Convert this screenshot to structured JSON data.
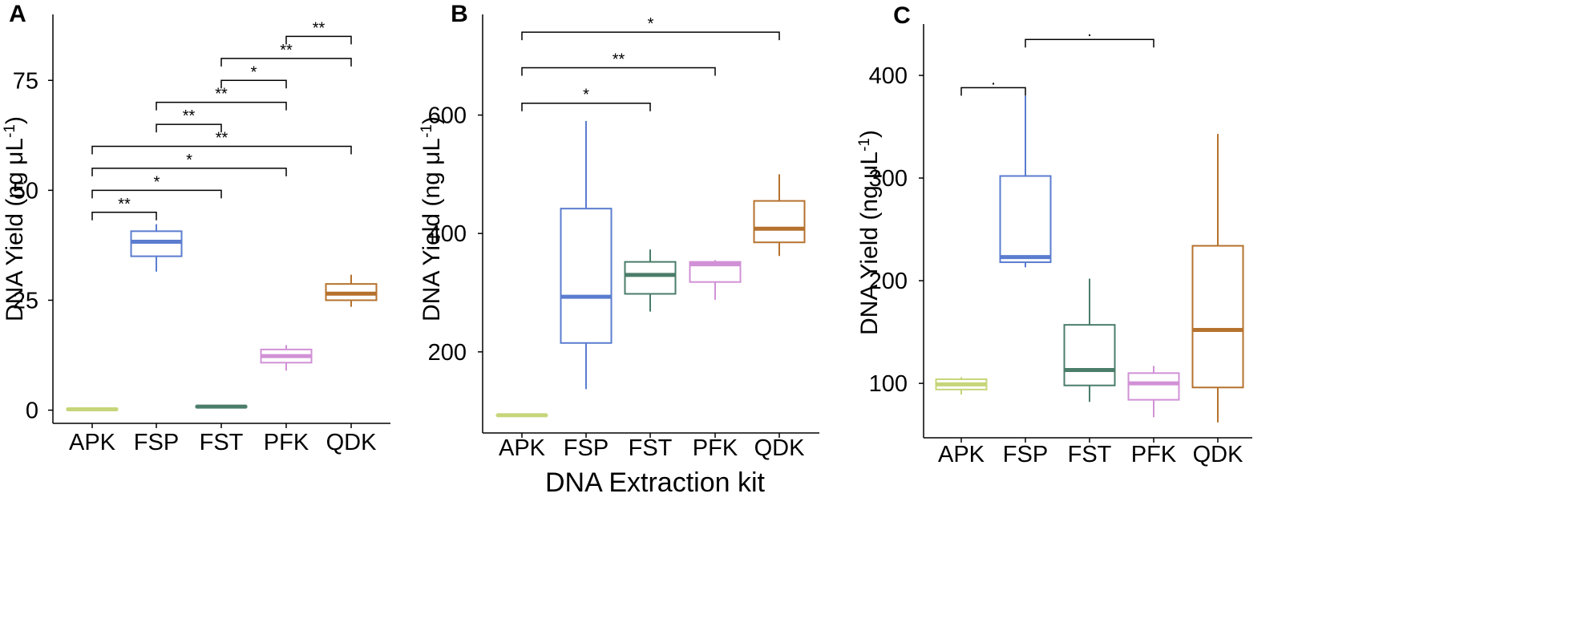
{
  "figure": {
    "xlabel": "DNA Extraction kit"
  },
  "kit_colors": {
    "APK": "#c7d57a",
    "FSP": "#5b7ccf",
    "FST": "#4a7d6a",
    "PFK": "#d191d6",
    "QDK": "#b5722e"
  },
  "chart_data": [
    {
      "panel": "A",
      "type": "box",
      "ylabel_main": "DNA Yield (ng μL",
      "ylabel_sup": "-1",
      "ylabel_close": ")",
      "categories": [
        "APK",
        "FSP",
        "FST",
        "PFK",
        "QDK"
      ],
      "ylim": [
        -3,
        90
      ],
      "yticks": [
        0,
        25,
        50,
        75
      ],
      "yticklabels": [
        "0",
        "25",
        "50",
        "75"
      ],
      "boxes": [
        {
          "name": "APK",
          "min": 0.1,
          "q1": 0.1,
          "median": 0.2,
          "q3": 0.3,
          "max": 0.3
        },
        {
          "name": "FSP",
          "min": 31.5,
          "q1": 35.0,
          "median": 38.3,
          "q3": 40.7,
          "max": 42.3
        },
        {
          "name": "FST",
          "min": 0.6,
          "q1": 0.7,
          "median": 0.8,
          "q3": 0.9,
          "max": 1.0
        },
        {
          "name": "PFK",
          "min": 9.0,
          "q1": 10.8,
          "median": 12.3,
          "q3": 13.8,
          "max": 14.8
        },
        {
          "name": "QDK",
          "min": 23.5,
          "q1": 25.0,
          "median": 26.5,
          "q3": 28.7,
          "max": 30.8
        }
      ],
      "significance": [
        {
          "from": "APK",
          "to": "FSP",
          "y": 45,
          "label": "**"
        },
        {
          "from": "APK",
          "to": "FST",
          "y": 50,
          "label": "*"
        },
        {
          "from": "APK",
          "to": "PFK",
          "y": 55,
          "label": "*"
        },
        {
          "from": "APK",
          "to": "QDK",
          "y": 60,
          "label": "**"
        },
        {
          "from": "FSP",
          "to": "FST",
          "y": 65,
          "label": "**"
        },
        {
          "from": "FSP",
          "to": "PFK",
          "y": 70,
          "label": "**"
        },
        {
          "from": "FST",
          "to": "PFK",
          "y": 75,
          "label": "*"
        },
        {
          "from": "FST",
          "to": "QDK",
          "y": 80,
          "label": "**"
        },
        {
          "from": "PFK",
          "to": "QDK",
          "y": 85,
          "label": "**"
        }
      ]
    },
    {
      "panel": "B",
      "type": "box",
      "ylabel_main": "DNA Yield (ng μL",
      "ylabel_sup": "-1",
      "ylabel_close": ")",
      "categories": [
        "APK",
        "FSP",
        "FST",
        "PFK",
        "QDK"
      ],
      "ylim": [
        63,
        770
      ],
      "yticks": [
        200,
        400,
        600
      ],
      "yticklabels": [
        "200",
        "400",
        "600"
      ],
      "boxes": [
        {
          "name": "APK",
          "min": 93,
          "q1": 93,
          "median": 93,
          "q3": 93,
          "max": 93
        },
        {
          "name": "FSP",
          "min": 137,
          "q1": 215,
          "median": 293,
          "q3": 442,
          "max": 590
        },
        {
          "name": "FST",
          "min": 268,
          "q1": 298,
          "median": 330,
          "q3": 352,
          "max": 373
        },
        {
          "name": "PFK",
          "min": 288,
          "q1": 318,
          "median": 348,
          "q3": 352,
          "max": 355
        },
        {
          "name": "QDK",
          "min": 362,
          "q1": 385,
          "median": 408,
          "q3": 455,
          "max": 500
        }
      ],
      "significance": [
        {
          "from": "APK",
          "to": "FST",
          "y": 620,
          "label": "*"
        },
        {
          "from": "APK",
          "to": "PFK",
          "y": 680,
          "label": "**"
        },
        {
          "from": "APK",
          "to": "QDK",
          "y": 740,
          "label": "*"
        }
      ]
    },
    {
      "panel": "C",
      "type": "box",
      "ylabel_main": "DNA Yield (ng μL",
      "ylabel_sup": "-1",
      "ylabel_close": ")",
      "categories": [
        "APK",
        "FSP",
        "FST",
        "PFK",
        "QDK"
      ],
      "ylim": [
        47,
        450
      ],
      "yticks": [
        100,
        200,
        300,
        400
      ],
      "yticklabels": [
        "100",
        "200",
        "300",
        "400"
      ],
      "boxes": [
        {
          "name": "APK",
          "min": 89,
          "q1": 94,
          "median": 99,
          "q3": 104,
          "max": 106
        },
        {
          "name": "FSP",
          "min": 213,
          "q1": 218,
          "median": 223,
          "q3": 302,
          "max": 380
        },
        {
          "name": "FST",
          "min": 82,
          "q1": 98,
          "median": 113,
          "q3": 157,
          "max": 202
        },
        {
          "name": "PFK",
          "min": 67,
          "q1": 84,
          "median": 100,
          "q3": 110,
          "max": 117
        },
        {
          "name": "QDK",
          "min": 62,
          "q1": 96,
          "median": 152,
          "q3": 234,
          "max": 343
        }
      ],
      "significance": [
        {
          "from": "APK",
          "to": "FSP",
          "y": 388,
          "label": "."
        },
        {
          "from": "FSP",
          "to": "PFK",
          "y": 435,
          "label": "."
        }
      ]
    }
  ]
}
